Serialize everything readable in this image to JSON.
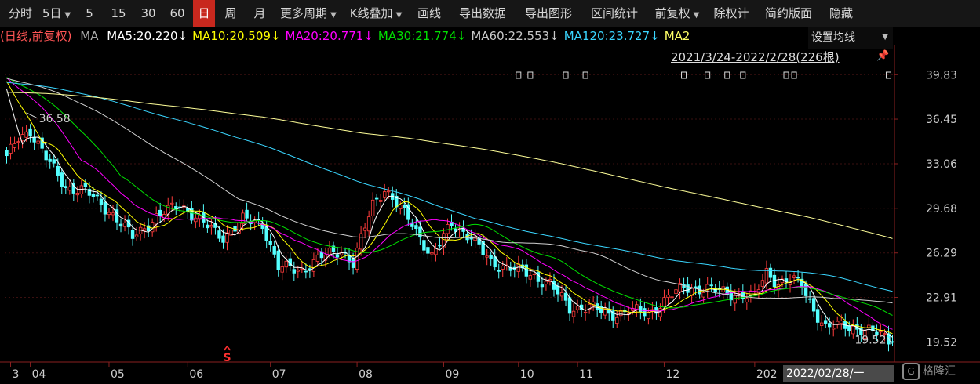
{
  "toolbar": {
    "items": [
      {
        "label": "分时"
      },
      {
        "label": "5日"
      },
      {
        "label": "5"
      },
      {
        "label": "15"
      },
      {
        "label": "30"
      },
      {
        "label": "60"
      },
      {
        "label": "日"
      },
      {
        "label": "周"
      },
      {
        "label": "月"
      },
      {
        "label": "更多周期"
      },
      {
        "label": "K线叠加"
      },
      {
        "label": "画线"
      },
      {
        "label": "导出数据"
      },
      {
        "label": "导出图形"
      },
      {
        "label": "区间统计"
      },
      {
        "label": "前复权"
      },
      {
        "label": "除权计"
      },
      {
        "label": "简约版面"
      },
      {
        "label": "隐藏"
      }
    ],
    "active": "日"
  },
  "ma_bar": {
    "prefix": "(日线,前复权)",
    "ma_label": "MA",
    "items": [
      {
        "text": "MA5:20.220↓",
        "color": "#ffffff"
      },
      {
        "text": "MA10:20.509↓",
        "color": "#ffff00"
      },
      {
        "text": "MA20:20.771↓",
        "color": "#ff00ff"
      },
      {
        "text": "MA30:21.774↓",
        "color": "#00e000"
      },
      {
        "text": "MA60:22.553↓",
        "color": "#c8c8c8"
      },
      {
        "text": "MA120:23.727↓",
        "color": "#3ad6ff"
      },
      {
        "text": "MA2",
        "color": "#ffff66"
      }
    ],
    "settings_label": "设置均线"
  },
  "date_range": "2021/3/24-2022/2/28(226根)",
  "last_date_label": "2022/02/28/一",
  "watermark": "格隆汇",
  "chart_data": {
    "type": "candlestick",
    "ylim": [
      18.0,
      40.5
    ],
    "yticks": [
      39.83,
      36.45,
      33.06,
      29.68,
      26.29,
      22.91,
      19.52
    ],
    "xticks": [
      {
        "label": "3",
        "day": 1
      },
      {
        "label": "04",
        "day": 6
      },
      {
        "label": "05",
        "day": 26
      },
      {
        "label": "06",
        "day": 46
      },
      {
        "label": "07",
        "day": 67
      },
      {
        "label": "08",
        "day": 89
      },
      {
        "label": "09",
        "day": 111
      },
      {
        "label": "10",
        "day": 130
      },
      {
        "label": "11",
        "day": 145
      },
      {
        "label": "12",
        "day": 167
      },
      {
        "label": "202",
        "day": 190
      }
    ],
    "n_days": 226,
    "close_anchors": [
      [
        0,
        33.5
      ],
      [
        3,
        35.0
      ],
      [
        6,
        35.6
      ],
      [
        10,
        33.5
      ],
      [
        15,
        31.3
      ],
      [
        20,
        31.0
      ],
      [
        26,
        29.5
      ],
      [
        32,
        27.5
      ],
      [
        38,
        29.0
      ],
      [
        44,
        30.0
      ],
      [
        50,
        28.5
      ],
      [
        55,
        27.5
      ],
      [
        60,
        28.8
      ],
      [
        65,
        28.5
      ],
      [
        69,
        25.2
      ],
      [
        75,
        25.0
      ],
      [
        80,
        26.0
      ],
      [
        85,
        26.5
      ],
      [
        88,
        25.5
      ],
      [
        93,
        30.0
      ],
      [
        96,
        31.2
      ],
      [
        99,
        30.0
      ],
      [
        103,
        28.5
      ],
      [
        108,
        26.0
      ],
      [
        113,
        28.5
      ],
      [
        118,
        27.5
      ],
      [
        123,
        25.5
      ],
      [
        128,
        25.2
      ],
      [
        133,
        24.6
      ],
      [
        138,
        24.0
      ],
      [
        143,
        22.0
      ],
      [
        148,
        22.3
      ],
      [
        153,
        21.5
      ],
      [
        158,
        22.0
      ],
      [
        163,
        21.6
      ],
      [
        168,
        23.0
      ],
      [
        172,
        23.6
      ],
      [
        178,
        23.6
      ],
      [
        183,
        23.2
      ],
      [
        190,
        23.0
      ],
      [
        193,
        24.8
      ],
      [
        196,
        24.0
      ],
      [
        199,
        24.3
      ],
      [
        202,
        23.8
      ],
      [
        205,
        22.0
      ],
      [
        208,
        20.6
      ],
      [
        213,
        20.8
      ],
      [
        218,
        20.4
      ],
      [
        222,
        20.1
      ],
      [
        225,
        19.52
      ]
    ],
    "high_label": {
      "text": "36.58",
      "value": 36.58,
      "day": 5
    },
    "low_label": {
      "text": "19.52",
      "value": 19.52,
      "day": 225
    },
    "ma_lines": [
      {
        "name": "MA5",
        "color": "#ffffff",
        "period": 5
      },
      {
        "name": "MA10",
        "color": "#ffff00",
        "period": 10
      },
      {
        "name": "MA20",
        "color": "#ff00ff",
        "period": 20
      },
      {
        "name": "MA30",
        "color": "#00e000",
        "period": 30
      },
      {
        "name": "MA60",
        "color": "#d0d0d0",
        "period": 60
      },
      {
        "name": "MA120",
        "color": "#3ad6ff",
        "period": 120
      },
      {
        "name": "MA250",
        "color": "#ffff99",
        "period": 250
      }
    ],
    "up_color": "#ff3c3c",
    "down_color": "#54ffff",
    "event_markers": [
      130,
      133,
      142,
      147,
      172,
      178,
      183,
      187,
      198,
      200,
      224
    ],
    "s_marker_day": 56
  }
}
